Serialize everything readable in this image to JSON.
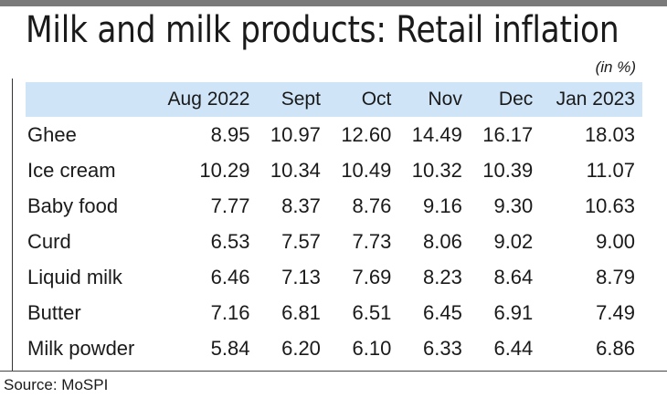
{
  "title": "Milk and milk products: Retail inflation",
  "unit": "(in %)",
  "source": "Source: MoSPI",
  "chart_data": {
    "type": "table",
    "title": "Milk and milk products: Retail inflation",
    "unit": "(in %)",
    "columns": [
      "Aug 2022",
      "Sept",
      "Oct",
      "Nov",
      "Dec",
      "Jan 2023"
    ],
    "rows": [
      {
        "label": "Ghee",
        "values": [
          "8.95",
          "10.97",
          "12.60",
          "14.49",
          "16.17",
          "18.03"
        ]
      },
      {
        "label": "Ice cream",
        "values": [
          "10.29",
          "10.34",
          "10.49",
          "10.32",
          "10.39",
          "11.07"
        ]
      },
      {
        "label": "Baby food",
        "values": [
          "7.77",
          "8.37",
          "8.76",
          "9.16",
          "9.30",
          "10.63"
        ]
      },
      {
        "label": "Curd",
        "values": [
          "6.53",
          "7.57",
          "7.73",
          "8.06",
          "9.02",
          "9.00"
        ]
      },
      {
        "label": "Liquid milk",
        "values": [
          "6.46",
          "7.13",
          "7.69",
          "8.23",
          "8.64",
          "8.79"
        ]
      },
      {
        "label": "Butter",
        "values": [
          "7.16",
          "6.81",
          "6.51",
          "6.45",
          "6.91",
          "7.49"
        ]
      },
      {
        "label": "Milk powder",
        "values": [
          "5.84",
          "6.20",
          "6.10",
          "6.33",
          "6.44",
          "6.86"
        ]
      }
    ],
    "header_color": "#cfe4f7"
  }
}
